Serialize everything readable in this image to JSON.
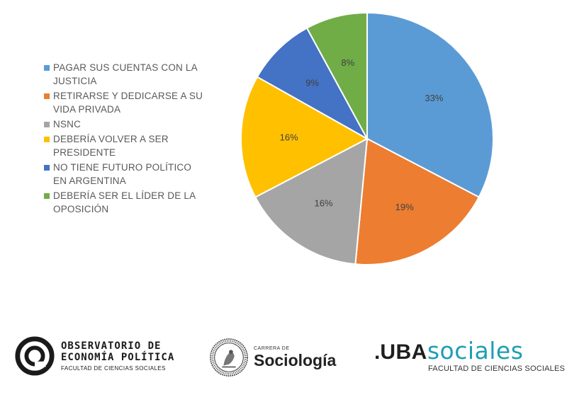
{
  "chart_data": {
    "type": "pie",
    "categories": [
      "PAGAR SUS CUENTAS CON LA JUSTICIA",
      "RETIRARSE Y DEDICARSE A SU VIDA PRIVADA",
      "NSNC",
      "DEBERÍA VOLVER A SER PRESIDENTE",
      "NO TIENE FUTURO POLÍTICO EN ARGENTINA",
      "DEBERÍA SER EL LÍDER DE LA OPOSICIÓN"
    ],
    "legend_lines": [
      [
        "PAGAR SUS CUENTAS CON LA",
        "JUSTICIA"
      ],
      [
        "RETIRARSE Y DEDICARSE A SU",
        "VIDA PRIVADA"
      ],
      [
        "NSNC"
      ],
      [
        "DEBERÍA VOLVER A SER",
        "PRESIDENTE"
      ],
      [
        "NO TIENE FUTURO POLÍTICO",
        "EN ARGENTINA"
      ],
      [
        "DEBERÍA SER EL LÍDER DE LA",
        "OPOSICIÓN"
      ]
    ],
    "values": [
      33,
      19,
      16,
      16,
      9,
      8
    ],
    "data_labels": [
      "33%",
      "19%",
      "16%",
      "16%",
      "9%",
      "8%"
    ],
    "colors": [
      "#5b9bd5",
      "#ed7d31",
      "#a5a5a5",
      "#ffc000",
      "#4472c4",
      "#70ad47"
    ],
    "unit": "%",
    "legend_position": "left",
    "start_angle": "12 o'clock, clockwise"
  },
  "logos": {
    "oep": {
      "line1": "OBSERVATORIO DE",
      "line2": "ECONOMÍA POLÍTICA",
      "line3": "FACULTAD DE CIENCIAS SOCIALES",
      "icon": "concentric-circle-icon"
    },
    "sociologia": {
      "small": "CARRERA DE",
      "big": "Sociología",
      "icon": "university-seal-icon"
    },
    "uba": {
      "dot": ".",
      "uba": "UBA",
      "sociales": "sociales",
      "faculty": "FACULTAD DE CIENCIAS SOCIALES"
    }
  }
}
